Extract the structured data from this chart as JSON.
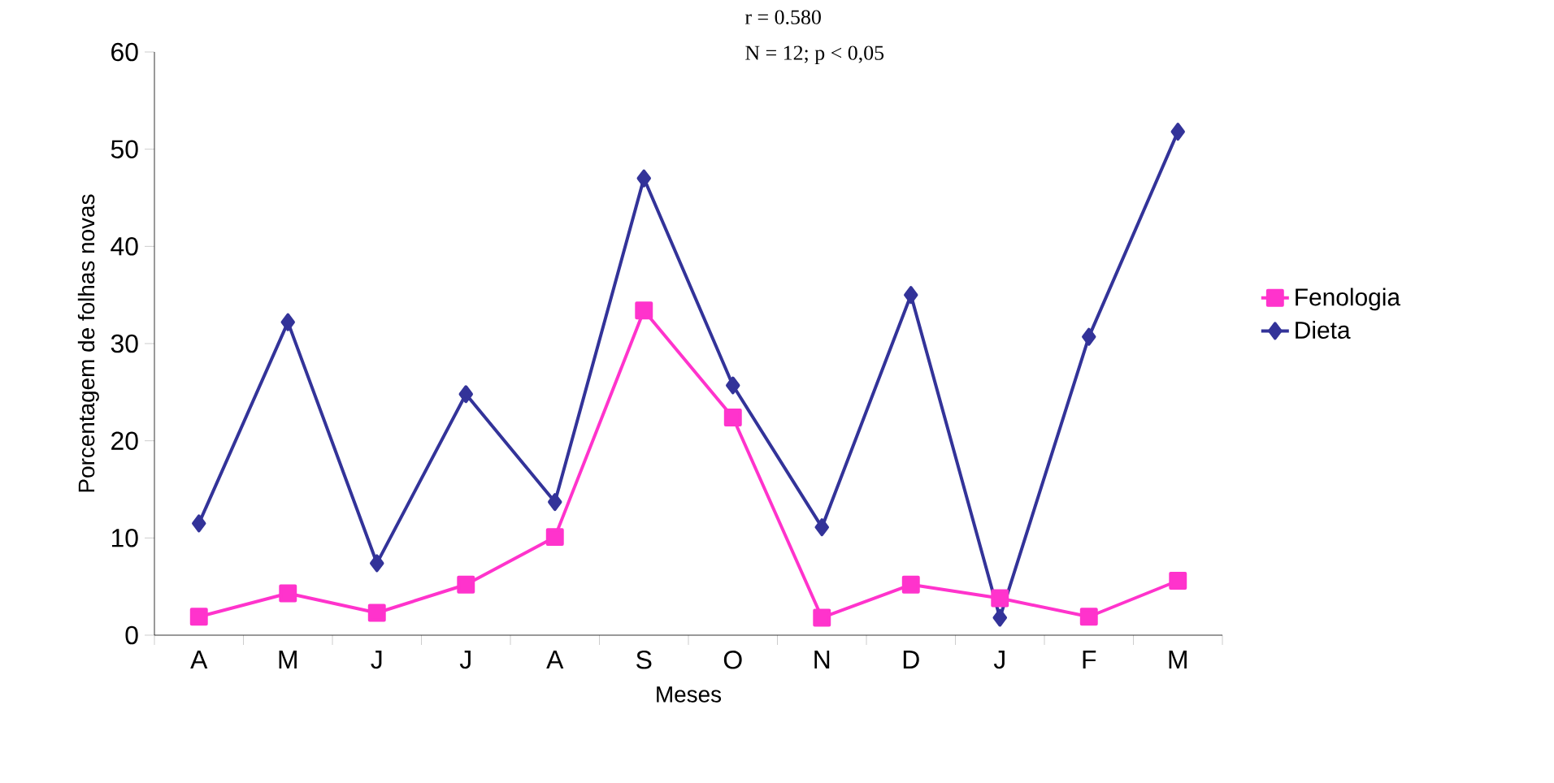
{
  "chart_data": {
    "type": "line",
    "xlabel": "Meses",
    "ylabel": "Porcentagem de folhas novas",
    "categories": [
      "A",
      "M",
      "J",
      "J",
      "A",
      "S",
      "O",
      "N",
      "D",
      "J",
      "F",
      "M"
    ],
    "series": [
      {
        "name": "Fenologia",
        "color": "#ff33cc",
        "marker": "square",
        "values": [
          1.9,
          4.3,
          2.3,
          5.2,
          10.1,
          33.4,
          22.4,
          1.8,
          5.2,
          3.8,
          1.9,
          5.6
        ]
      },
      {
        "name": "Dieta",
        "color": "#333399",
        "marker": "diamond",
        "values": [
          11.5,
          32.2,
          7.4,
          24.8,
          13.7,
          47.0,
          25.7,
          11.1,
          35.0,
          1.8,
          30.7,
          51.8
        ]
      }
    ],
    "ylim": [
      0,
      60
    ],
    "yticks": [
      0,
      10,
      20,
      30,
      40,
      50,
      60
    ],
    "grid": false,
    "legend": "right",
    "line_style": "solid",
    "annotations": [
      "r = 0.580",
      "N = 12;   p < 0,05"
    ]
  }
}
